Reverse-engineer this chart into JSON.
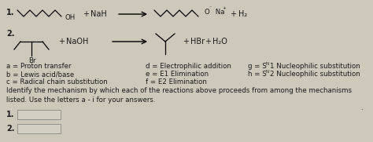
{
  "background_color": "#cec8bb",
  "fontsize": 7.0,
  "small_fontsize": 6.2,
  "reaction1_label": "1.",
  "reaction2_label": "2.",
  "plus": "+",
  "reagent1": "NaH",
  "reagent2": "NaOH",
  "product1a": "O",
  "product1b": "Na",
  "product1c": "H₂",
  "product2a": "HBr",
  "product2b": "H₂O",
  "br_label": "Br",
  "oh_label": "OH",
  "mech_a": "a = Proton transfer",
  "mech_b": "b = Lewis acid/base",
  "mech_c": "c = Radical chain substitution",
  "mech_d": "d = Electrophilic addition",
  "mech_e": "e = E1 Elimination",
  "mech_f": "f = E2 Elimination",
  "mech_g_pre": "g = S",
  "mech_g_sub": "N",
  "mech_g_post": "1 Nucleophilic substitution",
  "mech_h_pre": "h = S",
  "mech_h_sub": "N",
  "mech_h_post": "2 Nucleophilic substitution",
  "identify_text": "Identify the mechanism by which each of the reactions above proceeds from among the mechanisms\nlisted. Use the letters a - i for your answers.",
  "answer_box_color": "#d4cfc3",
  "text_color": "#1a1a1a"
}
